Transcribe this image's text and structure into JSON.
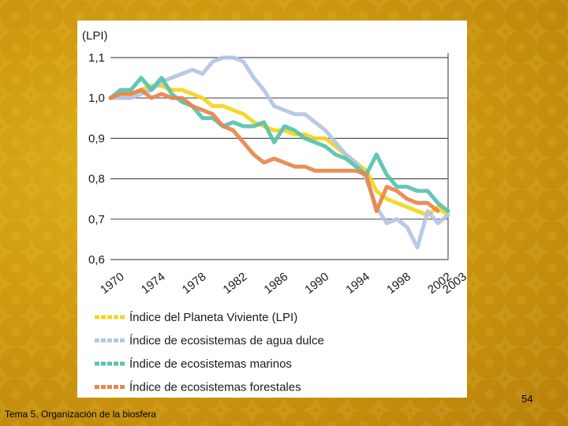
{
  "slide": {
    "footer_title": "Tema 5. Organización de la biosfera",
    "page_number": "54"
  },
  "chart_data": {
    "type": "line",
    "title": "",
    "ylabel": "(LPI)",
    "xlabel": "",
    "ylim": [
      0.6,
      1.1
    ],
    "yticks": [
      {
        "value": 1.1,
        "label": "1,1"
      },
      {
        "value": 1.0,
        "label": "1,0"
      },
      {
        "value": 0.9,
        "label": "0,9"
      },
      {
        "value": 0.8,
        "label": "0,8"
      },
      {
        "value": 0.7,
        "label": "0,7"
      },
      {
        "value": 0.6,
        "label": "0,6"
      }
    ],
    "xlim": [
      1970,
      2003
    ],
    "xticks": [
      "1970",
      "1974",
      "1978",
      "1982",
      "1986",
      "1990",
      "1994",
      "1998",
      "2002",
      "2003"
    ],
    "grid": true,
    "legend_position": "bottom",
    "series": [
      {
        "name": "Índice del Planeta Viviente (LPI)",
        "color": "#f2d51c",
        "x": [
          1970,
          1971,
          1972,
          1973,
          1974,
          1975,
          1976,
          1977,
          1978,
          1979,
          1980,
          1981,
          1982,
          1983,
          1984,
          1985,
          1986,
          1987,
          1988,
          1989,
          1990,
          1991,
          1992,
          1993,
          1994,
          1995,
          1996,
          1997,
          1998,
          1999,
          2000,
          2001,
          2002,
          2003
        ],
        "y": [
          1.0,
          1.01,
          1.01,
          1.02,
          1.03,
          1.03,
          1.02,
          1.02,
          1.01,
          1.0,
          0.98,
          0.98,
          0.97,
          0.96,
          0.94,
          0.93,
          0.92,
          0.92,
          0.91,
          0.91,
          0.9,
          0.9,
          0.88,
          0.86,
          0.84,
          0.82,
          0.77,
          0.75,
          0.74,
          0.73,
          0.72,
          0.71,
          0.73,
          0.71
        ]
      },
      {
        "name": "Índice de ecosistemas de agua dulce",
        "color": "#b3c6e4",
        "x": [
          1970,
          1971,
          1972,
          1973,
          1974,
          1975,
          1976,
          1977,
          1978,
          1979,
          1980,
          1981,
          1982,
          1983,
          1984,
          1985,
          1986,
          1987,
          1988,
          1989,
          1990,
          1991,
          1992,
          1993,
          1994,
          1995,
          1996,
          1997,
          1998,
          1999,
          2000,
          2001,
          2002,
          2003
        ],
        "y": [
          1.0,
          1.0,
          1.0,
          1.01,
          1.02,
          1.04,
          1.05,
          1.06,
          1.07,
          1.06,
          1.09,
          1.1,
          1.1,
          1.09,
          1.05,
          1.02,
          0.98,
          0.97,
          0.96,
          0.96,
          0.94,
          0.92,
          0.89,
          0.86,
          0.84,
          0.8,
          0.73,
          0.69,
          0.7,
          0.68,
          0.63,
          0.72,
          0.69,
          0.71
        ]
      },
      {
        "name": "Índice de ecosistemas marinos",
        "color": "#56c2ac",
        "x": [
          1970,
          1971,
          1972,
          1973,
          1974,
          1975,
          1976,
          1977,
          1978,
          1979,
          1980,
          1981,
          1982,
          1983,
          1984,
          1985,
          1986,
          1987,
          1988,
          1989,
          1990,
          1991,
          1992,
          1993,
          1994,
          1995,
          1996,
          1997,
          1998,
          1999,
          2000,
          2001,
          2002,
          2003
        ],
        "y": [
          1.0,
          1.02,
          1.02,
          1.05,
          1.02,
          1.05,
          1.01,
          0.99,
          0.98,
          0.95,
          0.95,
          0.93,
          0.94,
          0.93,
          0.93,
          0.94,
          0.89,
          0.93,
          0.92,
          0.9,
          0.89,
          0.88,
          0.86,
          0.85,
          0.83,
          0.81,
          0.86,
          0.81,
          0.78,
          0.78,
          0.77,
          0.77,
          0.74,
          0.72
        ]
      },
      {
        "name": "Índice de ecosistemas forestales",
        "color": "#e8854a",
        "x": [
          1970,
          1971,
          1972,
          1973,
          1974,
          1975,
          1976,
          1977,
          1978,
          1979,
          1980,
          1981,
          1982,
          1983,
          1984,
          1985,
          1986,
          1987,
          1988,
          1989,
          1990,
          1991,
          1992,
          1993,
          1994,
          1995,
          1996,
          1997,
          1998,
          1999,
          2000,
          2001,
          2002
        ],
        "y": [
          1.0,
          1.01,
          1.01,
          1.02,
          1.0,
          1.01,
          1.0,
          1.0,
          0.98,
          0.97,
          0.96,
          0.93,
          0.92,
          0.89,
          0.86,
          0.84,
          0.85,
          0.84,
          0.83,
          0.83,
          0.82,
          0.82,
          0.82,
          0.82,
          0.82,
          0.81,
          0.72,
          0.78,
          0.77,
          0.75,
          0.74,
          0.74,
          0.72
        ]
      }
    ]
  }
}
